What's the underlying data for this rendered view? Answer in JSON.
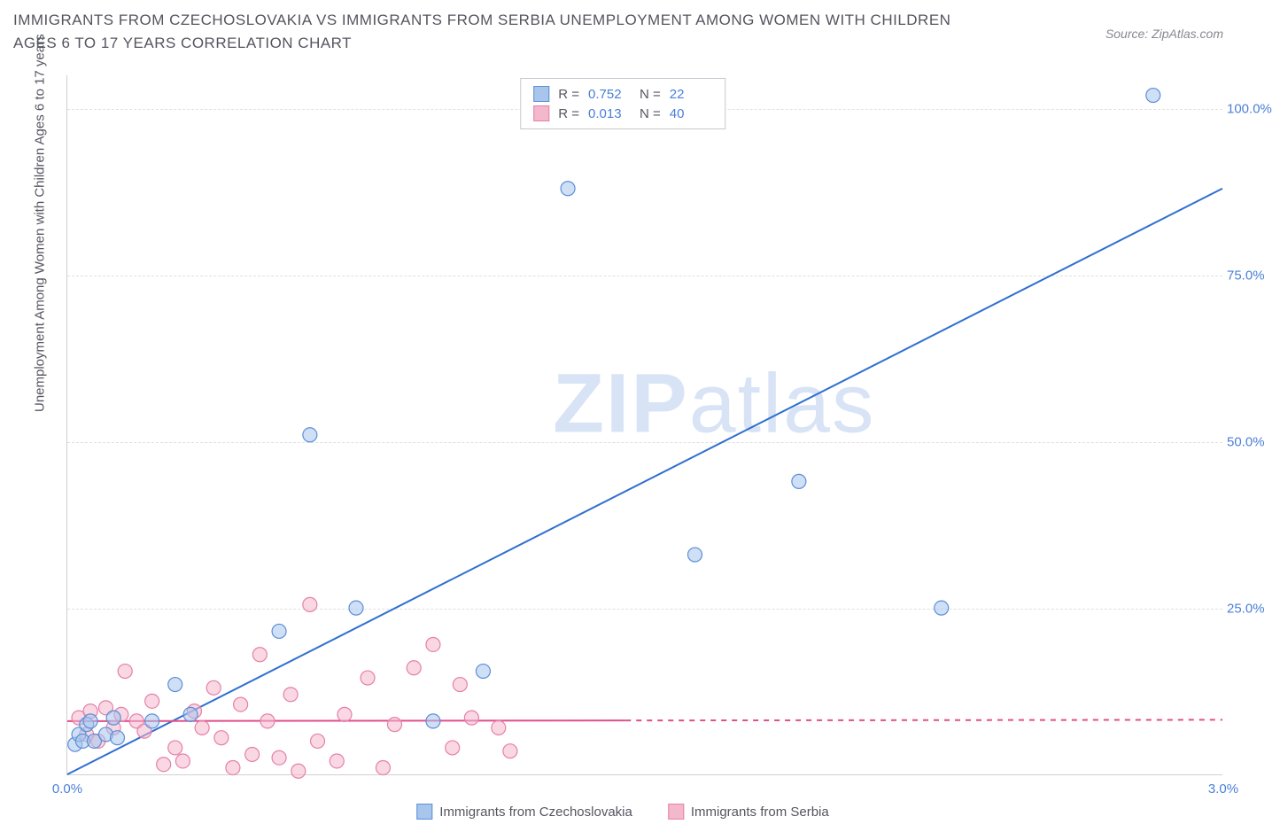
{
  "title": "IMMIGRANTS FROM CZECHOSLOVAKIA VS IMMIGRANTS FROM SERBIA UNEMPLOYMENT AMONG WOMEN WITH CHILDREN AGES 6 TO 17 YEARS CORRELATION CHART",
  "source_label": "Source:",
  "source_name": "ZipAtlas.com",
  "watermark_bold": "ZIP",
  "watermark_light": "atlas",
  "y_axis_title": "Unemployment Among Women with Children Ages 6 to 17 years",
  "chart": {
    "type": "scatter",
    "xlim": [
      0.0,
      3.0
    ],
    "ylim": [
      0.0,
      105.0
    ],
    "x_ticks": [
      0.0,
      3.0
    ],
    "x_tick_labels": [
      "0.0%",
      "3.0%"
    ],
    "y_ticks": [
      25.0,
      50.0,
      75.0,
      100.0
    ],
    "y_tick_labels": [
      "25.0%",
      "50.0%",
      "75.0%",
      "100.0%"
    ],
    "background_color": "#ffffff",
    "grid_color": "#e0e0e0",
    "axis_color": "#d0d0d0",
    "tick_label_color": "#4a7fd8",
    "axis_title_color": "#555560",
    "title_color": "#555560",
    "title_fontsize": 17,
    "label_fontsize": 15,
    "marker_radius": 8,
    "marker_opacity": 0.55,
    "line_width": 2
  },
  "series": [
    {
      "name": "Immigrants from Czechoslovakia",
      "color_fill": "#a8c5ec",
      "color_stroke": "#5b8fd6",
      "line_color": "#2f6fd0",
      "R_label": "R =",
      "R": "0.752",
      "N_label": "N =",
      "N": "22",
      "trendline": {
        "x1": 0.0,
        "y1": 0.0,
        "x2": 3.0,
        "y2": 88.0,
        "dash_from_x": null
      },
      "points": [
        [
          0.02,
          4.5
        ],
        [
          0.03,
          6.0
        ],
        [
          0.04,
          5.0
        ],
        [
          0.05,
          7.5
        ],
        [
          0.07,
          5.0
        ],
        [
          0.06,
          8.0
        ],
        [
          0.1,
          6.0
        ],
        [
          0.12,
          8.5
        ],
        [
          0.13,
          5.5
        ],
        [
          0.22,
          8.0
        ],
        [
          0.28,
          13.5
        ],
        [
          0.32,
          9.0
        ],
        [
          0.55,
          21.5
        ],
        [
          0.63,
          51.0
        ],
        [
          0.75,
          25.0
        ],
        [
          0.95,
          8.0
        ],
        [
          1.08,
          15.5
        ],
        [
          1.3,
          88.0
        ],
        [
          1.63,
          33.0
        ],
        [
          1.9,
          44.0
        ],
        [
          2.27,
          25.0
        ],
        [
          2.82,
          102.0
        ]
      ]
    },
    {
      "name": "Immigrants from Serbia",
      "color_fill": "#f4b8cd",
      "color_stroke": "#e67fa8",
      "line_color": "#e34d89",
      "R_label": "R =",
      "R": "0.013",
      "N_label": "N =",
      "N": "40",
      "trendline": {
        "x1": 0.0,
        "y1": 8.0,
        "x2": 3.0,
        "y2": 8.2,
        "dash_from_x": 1.45
      },
      "points": [
        [
          0.03,
          8.5
        ],
        [
          0.05,
          6.0
        ],
        [
          0.06,
          9.5
        ],
        [
          0.08,
          5.0
        ],
        [
          0.1,
          10.0
        ],
        [
          0.12,
          7.0
        ],
        [
          0.14,
          9.0
        ],
        [
          0.15,
          15.5
        ],
        [
          0.18,
          8.0
        ],
        [
          0.2,
          6.5
        ],
        [
          0.22,
          11.0
        ],
        [
          0.25,
          1.5
        ],
        [
          0.28,
          4.0
        ],
        [
          0.3,
          2.0
        ],
        [
          0.33,
          9.5
        ],
        [
          0.35,
          7.0
        ],
        [
          0.38,
          13.0
        ],
        [
          0.4,
          5.5
        ],
        [
          0.43,
          1.0
        ],
        [
          0.45,
          10.5
        ],
        [
          0.48,
          3.0
        ],
        [
          0.5,
          18.0
        ],
        [
          0.52,
          8.0
        ],
        [
          0.55,
          2.5
        ],
        [
          0.58,
          12.0
        ],
        [
          0.6,
          0.5
        ],
        [
          0.63,
          25.5
        ],
        [
          0.65,
          5.0
        ],
        [
          0.7,
          2.0
        ],
        [
          0.72,
          9.0
        ],
        [
          0.78,
          14.5
        ],
        [
          0.82,
          1.0
        ],
        [
          0.85,
          7.5
        ],
        [
          0.9,
          16.0
        ],
        [
          0.95,
          19.5
        ],
        [
          1.0,
          4.0
        ],
        [
          1.02,
          13.5
        ],
        [
          1.05,
          8.5
        ],
        [
          1.15,
          3.5
        ],
        [
          1.12,
          7.0
        ]
      ]
    }
  ],
  "legend_bottom": [
    {
      "label": "Immigrants from Czechoslovakia",
      "fill": "#a8c5ec",
      "stroke": "#5b8fd6"
    },
    {
      "label": "Immigrants from Serbia",
      "fill": "#f4b8cd",
      "stroke": "#e67fa8"
    }
  ]
}
